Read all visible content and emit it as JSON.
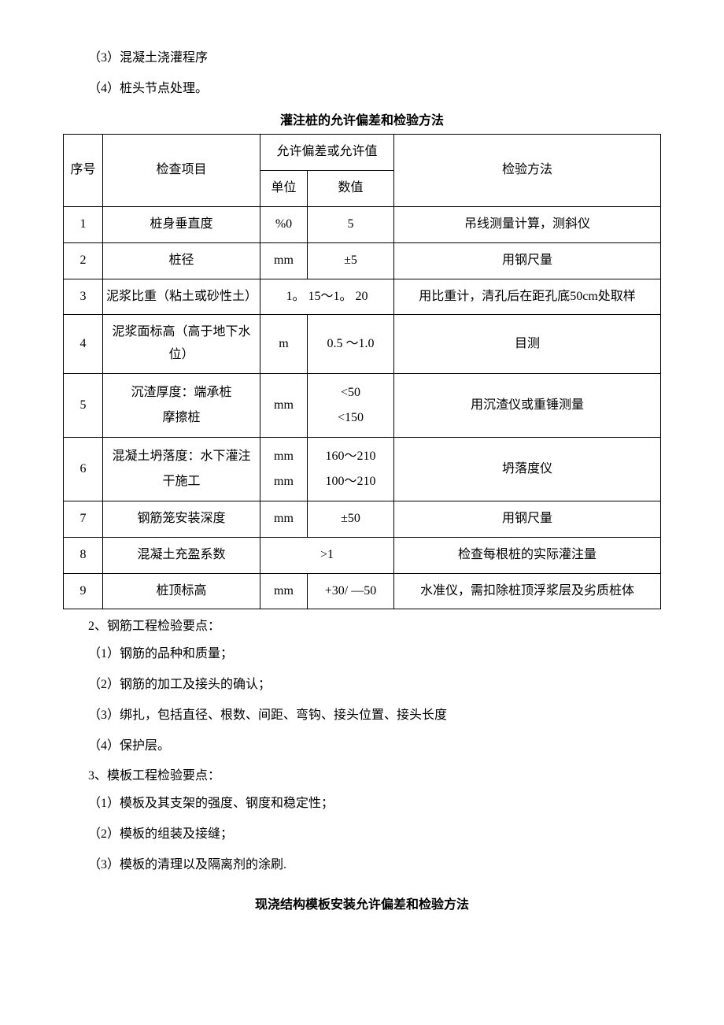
{
  "paragraphs_top": [
    "（3）混凝土浇灌程序",
    "（4）桩头节点处理。"
  ],
  "table1": {
    "title": "灌注桩的允许偏差和检验方法",
    "headers": {
      "seq": "序号",
      "item": "检查项目",
      "tol_group": "允许偏差或允许值",
      "unit": "单位",
      "val": "数值",
      "method": "检验方法"
    },
    "rows": [
      {
        "seq": "1",
        "item": "桩身垂直度",
        "unit": "%0",
        "val": "5",
        "method": "吊线测量计算，测斜仪"
      },
      {
        "seq": "2",
        "item": "桩径",
        "unit": "mm",
        "val": "±5",
        "method": "用钢尺量"
      },
      {
        "seq": "3",
        "item": "泥浆比重（粘土或砂性土）",
        "unit_val_merged": "1。 15〜1。 20",
        "method": "用比重计，清孔后在距孔底50cm处取样"
      },
      {
        "seq": "4",
        "item": "泥浆面标高（高于地下水位）",
        "unit": "m",
        "val": "0.5 〜1.0",
        "method": "目测"
      },
      {
        "seq": "5",
        "item_l1": "沉渣厚度：端承桩",
        "item_l2": "摩擦桩",
        "unit": "mm",
        "val_l1": "<50",
        "val_l2": "<150",
        "method": "用沉渣仪或重锤测量"
      },
      {
        "seq": "6",
        "item_l1": "混凝土坍落度：水下灌注",
        "item_l2": "干施工",
        "unit_l1": "mm",
        "unit_l2": "mm",
        "val_l1": "160〜210",
        "val_l2": "100〜210",
        "method": "坍落度仪"
      },
      {
        "seq": "7",
        "item": "钢筋笼安装深度",
        "unit": "mm",
        "val": "±50",
        "method": "用钢尺量"
      },
      {
        "seq": "8",
        "item": "混凝土充盈系数",
        "unit_val_merged": ">1",
        "method": "检查每根桩的实际灌注量"
      },
      {
        "seq": "9",
        "item": "桩顶标高",
        "unit": "mm",
        "val": "+30/ —50",
        "method": "水准仪，需扣除桩顶浮浆层及劣质桩体"
      }
    ]
  },
  "paragraphs_mid": [
    "2、钢筋工程检验要点：",
    "（1）钢筋的品种和质量；",
    "（2）钢筋的加工及接头的确认；",
    "（3）绑扎，包括直径、根数、间距、弯钩、接头位置、接头长度",
    "（4）保护层。",
    "3、模板工程检验要点：",
    "（1）模板及其支架的强度、钢度和稳定性；",
    "（2）模板的组装及接缝；",
    "（3）模板的清理以及隔离剂的涂刷."
  ],
  "table2_title": "现浇结构模板安装允许偏差和检验方法"
}
